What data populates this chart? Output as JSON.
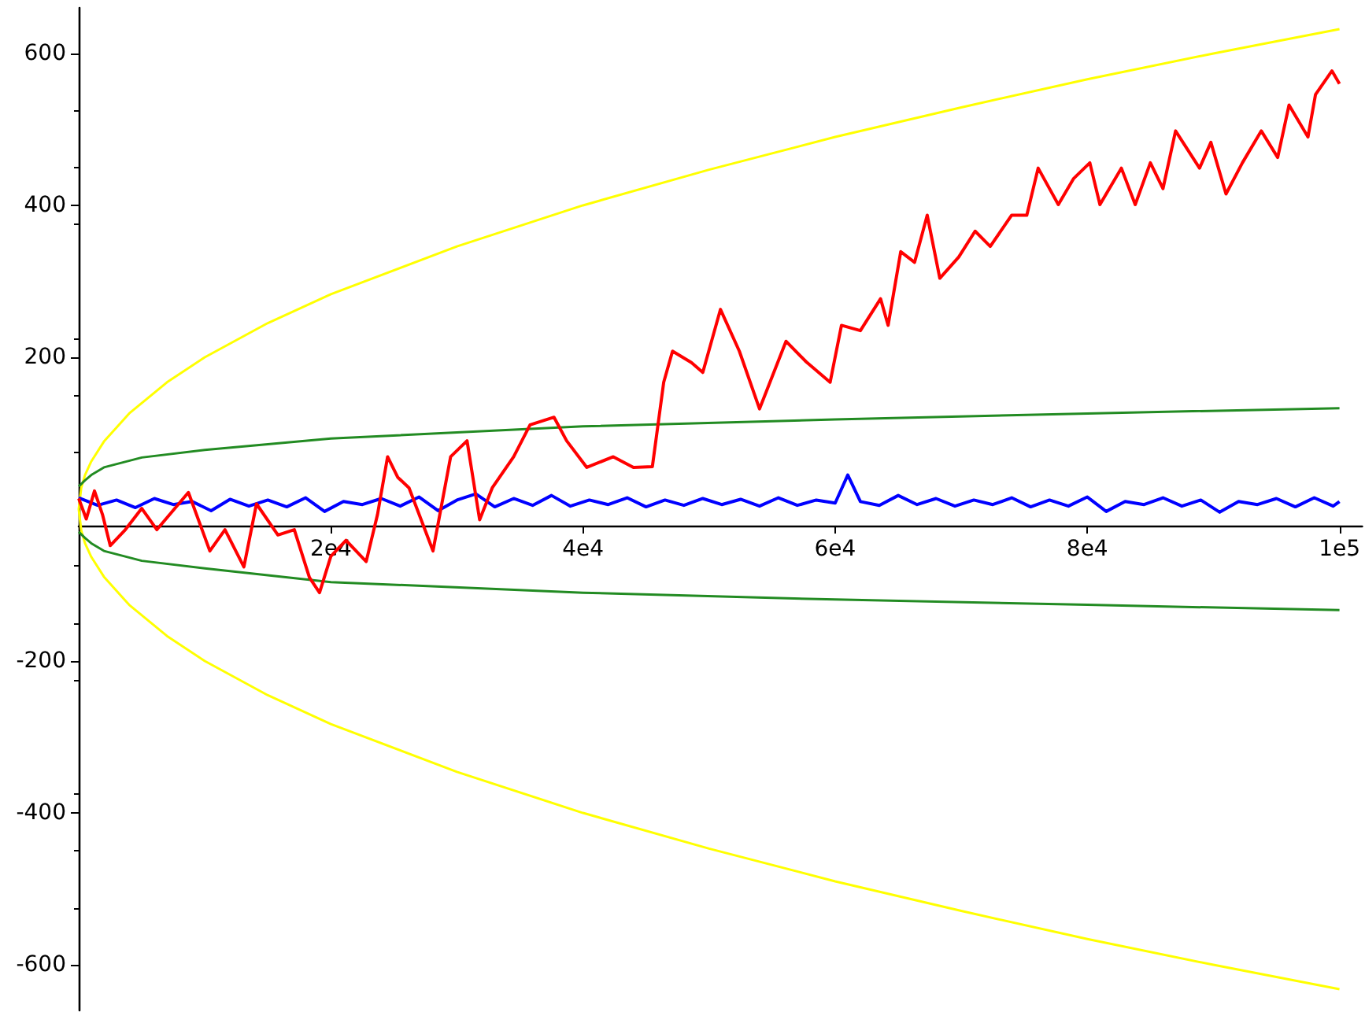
{
  "chart_data": {
    "type": "line",
    "marker": "none",
    "grid": false,
    "xlim": [
      0,
      101800
    ],
    "ylim": [
      -660,
      660
    ],
    "xticks": [
      {
        "value": 20000,
        "label": "2e4"
      },
      {
        "value": 40000,
        "label": "4e4"
      },
      {
        "value": 60000,
        "label": "6e4"
      },
      {
        "value": 80000,
        "label": "8e4"
      },
      {
        "value": 100000,
        "label": "1e5"
      }
    ],
    "yticks": [
      -600,
      -400,
      -200,
      200,
      400,
      600
    ],
    "series": [
      {
        "color": "#ffff00",
        "x": [
          100000,
          90000,
          80000,
          70000,
          60000,
          50000,
          40000,
          30000,
          20000,
          15000,
          10000,
          7000,
          4000,
          2000,
          1000,
          500,
          200,
          0,
          200,
          500,
          1000,
          2000,
          4000,
          7000,
          10000,
          15000,
          20000,
          30000,
          40000,
          50000,
          60000,
          70000,
          80000,
          90000,
          100000
        ],
        "values": [
          -632,
          -600,
          -566,
          -529,
          -490,
          -447,
          -400,
          -346,
          -283,
          -245,
          -200,
          -167,
          -126,
          -89,
          -63,
          -45,
          -28,
          0,
          28,
          45,
          63,
          89,
          126,
          167,
          200,
          245,
          283,
          346,
          400,
          447,
          490,
          529,
          566,
          600,
          632
        ]
      },
      {
        "color": "#228b22",
        "x": [
          0,
          500,
          1000,
          2000,
          5000,
          10000,
          20000,
          40000,
          60000,
          80000,
          100000
        ],
        "values": [
          30,
          38,
          45,
          55,
          68,
          78,
          93,
          109,
          118,
          126,
          133
        ]
      },
      {
        "color": "#228b22",
        "x": [
          0,
          500,
          1000,
          2000,
          5000,
          10000,
          20000,
          40000,
          60000,
          80000,
          100000
        ],
        "values": [
          -30,
          -38,
          -45,
          -55,
          -68,
          -78,
          -96,
          -110,
          -119,
          -126,
          -133
        ]
      },
      {
        "color": "#0000ff",
        "x": [
          0,
          1500,
          3000,
          4500,
          6000,
          7500,
          9000,
          10500,
          12000,
          13500,
          15000,
          16500,
          18000,
          19500,
          21000,
          22500,
          24000,
          25500,
          27000,
          28500,
          30000,
          31500,
          33000,
          34500,
          36000,
          37500,
          39000,
          40500,
          42000,
          43500,
          45000,
          46500,
          48000,
          49500,
          51000,
          52500,
          54000,
          55500,
          57000,
          58500,
          60000,
          61000,
          62000,
          63500,
          65000,
          66500,
          68000,
          69500,
          71000,
          72500,
          74000,
          75500,
          77000,
          78500,
          80000,
          81500,
          83000,
          84500,
          86000,
          87500,
          89000,
          90500,
          92000,
          93500,
          95000,
          96500,
          98000,
          99500,
          100000
        ],
        "values": [
          15,
          5,
          12,
          2,
          14,
          6,
          10,
          -2,
          13,
          4,
          12,
          3,
          15,
          -3,
          10,
          6,
          14,
          4,
          16,
          -2,
          12,
          20,
          3,
          14,
          5,
          18,
          4,
          12,
          6,
          15,
          3,
          12,
          5,
          14,
          6,
          13,
          4,
          15,
          5,
          12,
          8,
          45,
          10,
          5,
          18,
          6,
          14,
          4,
          12,
          6,
          15,
          3,
          12,
          4,
          16,
          -3,
          10,
          6,
          15,
          4,
          12,
          -4,
          10,
          6,
          14,
          3,
          15,
          4,
          10
        ]
      },
      {
        "color": "#ff0000",
        "x": [
          0,
          600,
          1250,
          1900,
          2500,
          3700,
          5000,
          6200,
          8700,
          10400,
          11600,
          13100,
          14100,
          15800,
          17100,
          18300,
          19100,
          20000,
          21200,
          22800,
          23700,
          24500,
          25300,
          26200,
          28100,
          29500,
          30800,
          31800,
          32800,
          34500,
          35800,
          37700,
          38700,
          40300,
          42400,
          44000,
          45500,
          46400,
          47100,
          48600,
          49500,
          50900,
          52400,
          54000,
          56100,
          57700,
          59600,
          60500,
          62000,
          63600,
          64200,
          65200,
          66300,
          67300,
          68300,
          69800,
          71100,
          72300,
          74000,
          75200,
          76100,
          77700,
          78900,
          80200,
          81000,
          82700,
          83800,
          85000,
          86000,
          87000,
          88900,
          89800,
          91000,
          92300,
          93800,
          95100,
          96000,
          97500,
          98100,
          99400,
          100000
        ],
        "values": [
          14,
          -13,
          24,
          -8,
          -48,
          -27,
          1,
          -27,
          22,
          -55,
          -27,
          -76,
          7,
          -34,
          -27,
          -90,
          -110,
          -62,
          -41,
          -69,
          -7,
          69,
          42,
          28,
          -55,
          69,
          90,
          -14,
          28,
          69,
          111,
          121,
          90,
          55,
          69,
          55,
          56,
          167,
          208,
          193,
          180,
          263,
          208,
          132,
          221,
          194,
          167,
          242,
          235,
          277,
          242,
          339,
          325,
          387,
          304,
          332,
          366,
          346,
          387,
          387,
          449,
          401,
          435,
          456,
          401,
          449,
          401,
          456,
          422,
          498,
          449,
          483,
          415,
          456,
          498,
          463,
          532,
          490,
          546,
          577,
          560
        ]
      }
    ]
  }
}
